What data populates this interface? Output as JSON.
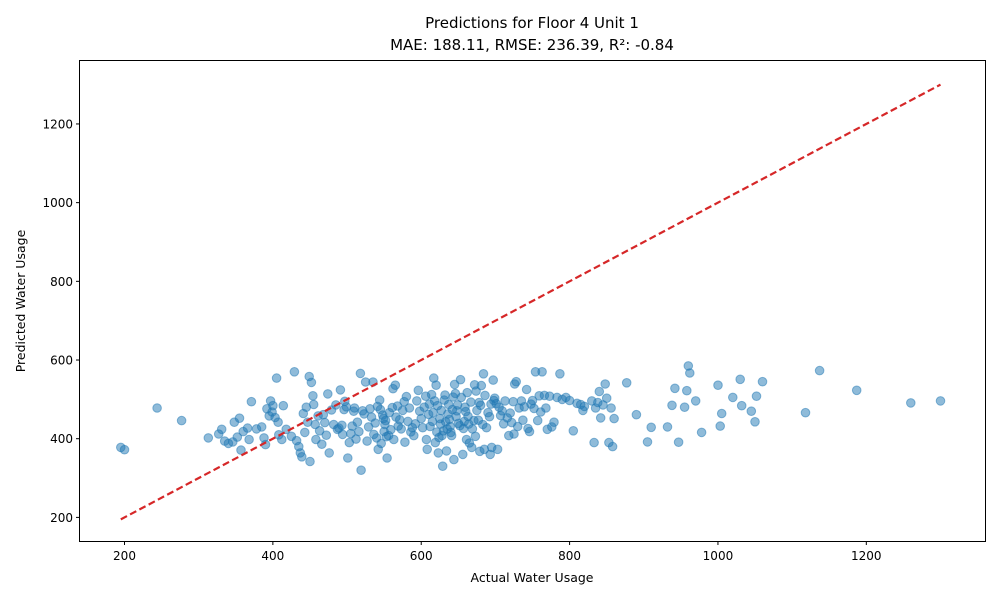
{
  "chart_data": {
    "type": "scatter",
    "title": "Predictions for Floor 4 Unit 1",
    "subtitle": "MAE: 188.11, RMSE: 236.39, R²: -0.84",
    "xlabel": "Actual Water Usage",
    "ylabel": "Predicted Water Usage",
    "xlim": [
      140,
      1360
    ],
    "ylim": [
      140,
      1360
    ],
    "xticks": [
      200,
      400,
      600,
      800,
      1000,
      1200
    ],
    "yticks": [
      200,
      400,
      600,
      800,
      1000,
      1200
    ],
    "grid": false,
    "colors": {
      "points": "#1f77b4",
      "reference_line": "#d62728"
    },
    "reference_line": {
      "from": [
        195,
        195
      ],
      "to": [
        1300,
        1300
      ],
      "style": "dashed"
    },
    "points": [
      [
        195,
        378
      ],
      [
        200,
        372
      ],
      [
        244,
        478
      ],
      [
        277,
        446
      ],
      [
        313,
        402
      ],
      [
        327,
        412
      ],
      [
        331,
        424
      ],
      [
        335,
        394
      ],
      [
        340,
        388
      ],
      [
        346,
        392
      ],
      [
        348,
        442
      ],
      [
        352,
        404
      ],
      [
        355,
        452
      ],
      [
        357,
        371
      ],
      [
        360,
        418
      ],
      [
        366,
        427
      ],
      [
        368,
        398
      ],
      [
        371,
        494
      ],
      [
        378,
        425
      ],
      [
        385,
        430
      ],
      [
        388,
        402
      ],
      [
        390,
        385
      ],
      [
        392,
        476
      ],
      [
        395,
        458
      ],
      [
        397,
        496
      ],
      [
        399,
        468
      ],
      [
        400,
        484
      ],
      [
        403,
        454
      ],
      [
        405,
        554
      ],
      [
        407,
        442
      ],
      [
        408,
        410
      ],
      [
        412,
        398
      ],
      [
        414,
        484
      ],
      [
        418,
        424
      ],
      [
        425,
        406
      ],
      [
        429,
        570
      ],
      [
        432,
        395
      ],
      [
        435,
        380
      ],
      [
        437,
        364
      ],
      [
        439,
        354
      ],
      [
        441,
        464
      ],
      [
        443,
        416
      ],
      [
        445,
        480
      ],
      [
        447,
        442
      ],
      [
        449,
        558
      ],
      [
        450,
        342
      ],
      [
        452,
        543
      ],
      [
        454,
        509
      ],
      [
        455,
        487
      ],
      [
        457,
        436
      ],
      [
        458,
        398
      ],
      [
        461,
        458
      ],
      [
        463,
        420
      ],
      [
        466,
        386
      ],
      [
        468,
        461
      ],
      [
        470,
        441
      ],
      [
        472,
        409
      ],
      [
        474,
        514
      ],
      [
        476,
        364
      ],
      [
        479,
        473
      ],
      [
        482,
        436
      ],
      [
        485,
        486
      ],
      [
        487,
        424
      ],
      [
        489,
        427
      ],
      [
        491,
        524
      ],
      [
        493,
        434
      ],
      [
        494,
        411
      ],
      [
        496,
        474
      ],
      [
        497,
        495
      ],
      [
        499,
        481
      ],
      [
        501,
        351
      ],
      [
        503,
        390
      ],
      [
        505,
        413
      ],
      [
        507,
        432
      ],
      [
        509,
        470
      ],
      [
        510,
        478
      ],
      [
        512,
        399
      ],
      [
        514,
        442
      ],
      [
        516,
        418
      ],
      [
        518,
        566
      ],
      [
        519,
        320
      ],
      [
        521,
        471
      ],
      [
        523,
        463
      ],
      [
        525,
        544
      ],
      [
        527,
        394
      ],
      [
        529,
        430
      ],
      [
        531,
        476
      ],
      [
        533,
        455
      ],
      [
        535,
        544
      ],
      [
        536,
        411
      ],
      [
        538,
        440
      ],
      [
        540,
        402
      ],
      [
        541,
        482
      ],
      [
        542,
        373
      ],
      [
        544,
        498
      ],
      [
        545,
        474
      ],
      [
        546,
        388
      ],
      [
        548,
        460
      ],
      [
        549,
        451
      ],
      [
        550,
        418
      ],
      [
        551,
        436
      ],
      [
        552,
        446
      ],
      [
        553,
        405
      ],
      [
        554,
        351
      ],
      [
        556,
        408
      ],
      [
        557,
        466
      ],
      [
        559,
        423
      ],
      [
        561,
        479
      ],
      [
        562,
        527
      ],
      [
        563,
        398
      ],
      [
        565,
        536
      ],
      [
        566,
        455
      ],
      [
        568,
        483
      ],
      [
        569,
        432
      ],
      [
        571,
        448
      ],
      [
        573,
        425
      ],
      [
        575,
        472
      ],
      [
        577,
        494
      ],
      [
        578,
        391
      ],
      [
        580,
        507
      ],
      [
        582,
        444
      ],
      [
        584,
        478
      ],
      [
        586,
        417
      ],
      [
        588,
        428
      ],
      [
        590,
        408
      ],
      [
        592,
        438
      ],
      [
        594,
        496
      ],
      [
        596,
        523
      ],
      [
        598,
        470
      ],
      [
        600,
        451
      ],
      [
        602,
        428
      ],
      [
        604,
        480
      ],
      [
        606,
        508
      ],
      [
        607,
        398
      ],
      [
        608,
        373
      ],
      [
        610,
        462
      ],
      [
        611,
        488
      ],
      [
        612,
        431
      ],
      [
        614,
        512
      ],
      [
        615,
        444
      ],
      [
        616,
        466
      ],
      [
        617,
        554
      ],
      [
        618,
        496
      ],
      [
        619,
        390
      ],
      [
        620,
        536
      ],
      [
        621,
        417
      ],
      [
        622,
        484
      ],
      [
        623,
        364
      ],
      [
        624,
        403
      ],
      [
        625,
        451
      ],
      [
        626,
        437
      ],
      [
        627,
        472
      ],
      [
        628,
        408
      ],
      [
        629,
        330
      ],
      [
        630,
        420
      ],
      [
        631,
        498
      ],
      [
        632,
        511
      ],
      [
        633,
        443
      ],
      [
        634,
        369
      ],
      [
        635,
        425
      ],
      [
        636,
        463
      ],
      [
        637,
        487
      ],
      [
        638,
        449
      ],
      [
        639,
        431
      ],
      [
        640,
        416
      ],
      [
        641,
        408
      ],
      [
        642,
        474
      ],
      [
        643,
        506
      ],
      [
        644,
        347
      ],
      [
        645,
        538
      ],
      [
        646,
        515
      ],
      [
        647,
        456
      ],
      [
        648,
        471
      ],
      [
        649,
        486
      ],
      [
        650,
        439
      ],
      [
        652,
        433
      ],
      [
        653,
        550
      ],
      [
        654,
        505
      ],
      [
        656,
        360
      ],
      [
        657,
        426
      ],
      [
        658,
        444
      ],
      [
        659,
        480
      ],
      [
        660,
        469
      ],
      [
        661,
        398
      ],
      [
        662,
        517
      ],
      [
        663,
        457
      ],
      [
        664,
        437
      ],
      [
        665,
        389
      ],
      [
        667,
        493
      ],
      [
        668,
        378
      ],
      [
        669,
        425
      ],
      [
        671,
        446
      ],
      [
        672,
        537
      ],
      [
        673,
        406
      ],
      [
        674,
        521
      ],
      [
        675,
        472
      ],
      [
        677,
        447
      ],
      [
        678,
        492
      ],
      [
        679,
        368
      ],
      [
        680,
        485
      ],
      [
        681,
        535
      ],
      [
        683,
        436
      ],
      [
        684,
        565
      ],
      [
        685,
        373
      ],
      [
        686,
        510
      ],
      [
        688,
        428
      ],
      [
        690,
        466
      ],
      [
        692,
        456
      ],
      [
        693,
        360
      ],
      [
        694,
        488
      ],
      [
        695,
        378
      ],
      [
        697,
        549
      ],
      [
        698,
        497
      ],
      [
        699,
        503
      ],
      [
        701,
        489
      ],
      [
        703,
        373
      ],
      [
        705,
        480
      ],
      [
        707,
        459
      ],
      [
        709,
        471
      ],
      [
        711,
        438
      ],
      [
        713,
        496
      ],
      [
        716,
        453
      ],
      [
        718,
        408
      ],
      [
        720,
        465
      ],
      [
        722,
        441
      ],
      [
        724,
        494
      ],
      [
        725,
        412
      ],
      [
        726,
        539
      ],
      [
        728,
        545
      ],
      [
        730,
        431
      ],
      [
        732,
        478
      ],
      [
        735,
        496
      ],
      [
        737,
        447
      ],
      [
        739,
        481
      ],
      [
        742,
        525
      ],
      [
        744,
        426
      ],
      [
        746,
        418
      ],
      [
        748,
        488
      ],
      [
        750,
        497
      ],
      [
        752,
        477
      ],
      [
        754,
        570
      ],
      [
        757,
        446
      ],
      [
        759,
        509
      ],
      [
        761,
        468
      ],
      [
        763,
        570
      ],
      [
        766,
        510
      ],
      [
        768,
        478
      ],
      [
        770,
        424
      ],
      [
        773,
        508
      ],
      [
        776,
        430
      ],
      [
        779,
        442
      ],
      [
        783,
        505
      ],
      [
        787,
        565
      ],
      [
        790,
        500
      ],
      [
        795,
        505
      ],
      [
        800,
        497
      ],
      [
        805,
        420
      ],
      [
        810,
        490
      ],
      [
        815,
        487
      ],
      [
        818,
        472
      ],
      [
        820,
        482
      ],
      [
        830,
        496
      ],
      [
        833,
        390
      ],
      [
        835,
        478
      ],
      [
        838,
        492
      ],
      [
        840,
        520
      ],
      [
        842,
        453
      ],
      [
        845,
        486
      ],
      [
        848,
        539
      ],
      [
        850,
        503
      ],
      [
        853,
        390
      ],
      [
        856,
        478
      ],
      [
        858,
        380
      ],
      [
        860,
        451
      ],
      [
        877,
        542
      ],
      [
        890,
        461
      ],
      [
        905,
        392
      ],
      [
        910,
        429
      ],
      [
        932,
        430
      ],
      [
        938,
        485
      ],
      [
        942,
        528
      ],
      [
        947,
        391
      ],
      [
        955,
        480
      ],
      [
        958,
        522
      ],
      [
        960,
        585
      ],
      [
        962,
        567
      ],
      [
        970,
        496
      ],
      [
        978,
        416
      ],
      [
        1000,
        536
      ],
      [
        1003,
        432
      ],
      [
        1005,
        464
      ],
      [
        1020,
        505
      ],
      [
        1030,
        551
      ],
      [
        1032,
        484
      ],
      [
        1045,
        470
      ],
      [
        1050,
        443
      ],
      [
        1052,
        508
      ],
      [
        1060,
        545
      ],
      [
        1118,
        466
      ],
      [
        1137,
        573
      ],
      [
        1187,
        523
      ],
      [
        1260,
        491
      ],
      [
        1300,
        496
      ]
    ]
  }
}
